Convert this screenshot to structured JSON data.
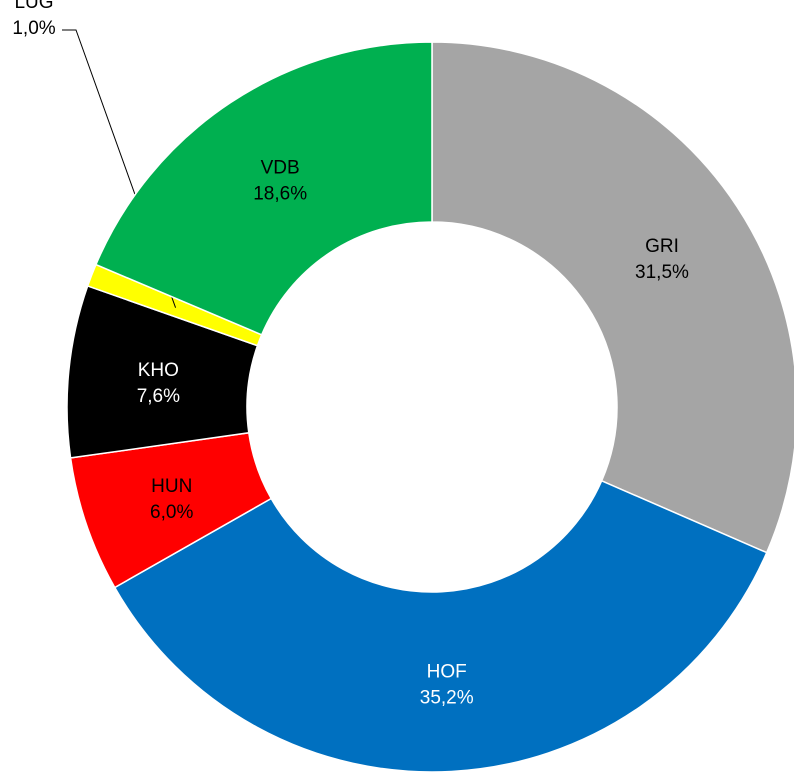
{
  "chart_data": {
    "type": "donut",
    "categories": [
      "GRI",
      "HOF",
      "HUN",
      "KHO",
      "LUG",
      "VDB"
    ],
    "values": [
      31.5,
      35.2,
      6.0,
      7.6,
      1.0,
      18.6
    ],
    "value_labels": [
      "31,5%",
      "35,2%",
      "6,0%",
      "7,6%",
      "1,0%",
      "18,6%"
    ],
    "colors": [
      "#a5a5a5",
      "#0070c0",
      "#ff0000",
      "#000000",
      "#ffff00",
      "#00b050"
    ],
    "label_colors": [
      "#000000",
      "#ffffff",
      "#000000",
      "#ffffff",
      "#000000",
      "#000000"
    ]
  }
}
